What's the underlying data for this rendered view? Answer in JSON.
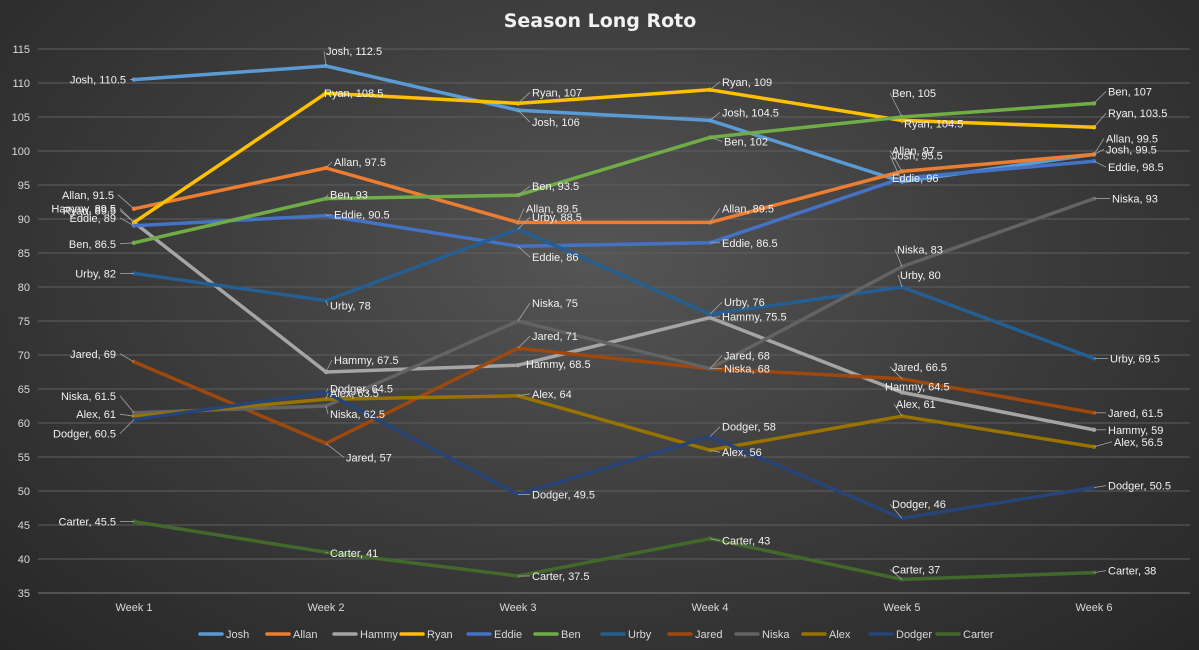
{
  "chart_data": {
    "type": "line",
    "title": "Season Long Roto",
    "categories": [
      "Week 1",
      "Week 2",
      "Week 3",
      "Week 4",
      "Week 5",
      "Week 6"
    ],
    "ylim": [
      35,
      115
    ],
    "yticks": [
      35,
      40,
      45,
      50,
      55,
      60,
      65,
      70,
      75,
      80,
      85,
      90,
      95,
      100,
      105,
      110,
      115
    ],
    "grid": "horizontal",
    "legend": "bottom",
    "data_labels": "series name and value",
    "series": [
      {
        "name": "Josh",
        "color": "#5b9bd5",
        "values": [
          110.5,
          112.5,
          106,
          104.5,
          95.5,
          99.5
        ]
      },
      {
        "name": "Allan",
        "color": "#ed7d31",
        "values": [
          91.5,
          97.5,
          89.5,
          89.5,
          97,
          99.5
        ]
      },
      {
        "name": "Hammy",
        "color": "#a5a5a5",
        "values": [
          89.5,
          67.5,
          68.5,
          75.5,
          64.5,
          59
        ]
      },
      {
        "name": "Ryan",
        "color": "#ffc000",
        "values": [
          89.5,
          108.5,
          107,
          109,
          104.5,
          103.5
        ]
      },
      {
        "name": "Eddie",
        "color": "#4472c4",
        "values": [
          89,
          90.5,
          86,
          86.5,
          96,
          98.5
        ]
      },
      {
        "name": "Ben",
        "color": "#70ad47",
        "values": [
          86.5,
          93,
          93.5,
          102,
          105,
          107
        ]
      },
      {
        "name": "Urby",
        "color": "#255e91",
        "values": [
          82,
          78,
          88.5,
          76,
          80,
          69.5
        ]
      },
      {
        "name": "Jared",
        "color": "#9e480e",
        "values": [
          69,
          57,
          71,
          68,
          66.5,
          61.5
        ]
      },
      {
        "name": "Niska",
        "color": "#636363",
        "values": [
          61.5,
          62.5,
          75,
          68,
          83,
          93
        ]
      },
      {
        "name": "Alex",
        "color": "#997300",
        "values": [
          61,
          63.5,
          64,
          56,
          61,
          56.5
        ]
      },
      {
        "name": "Dodger",
        "color": "#264478",
        "values": [
          60.5,
          64.5,
          49.5,
          58,
          46,
          50.5
        ]
      },
      {
        "name": "Carter",
        "color": "#43682b",
        "values": [
          45.5,
          41,
          37.5,
          43,
          37,
          38
        ]
      }
    ]
  }
}
